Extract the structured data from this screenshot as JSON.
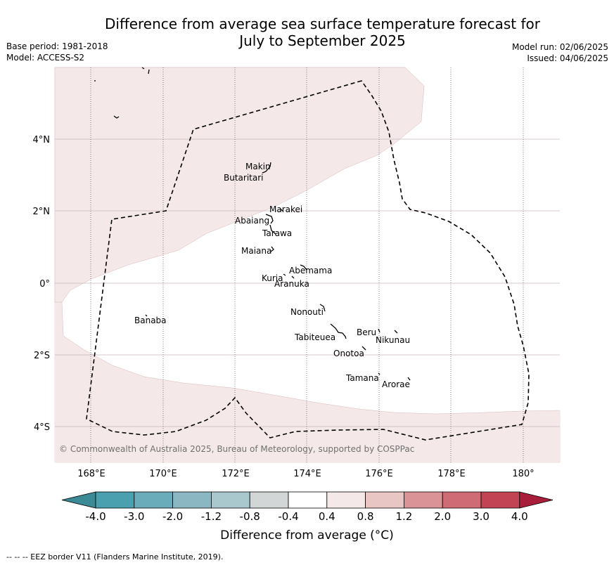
{
  "title_line1": "Difference from average sea surface temperature forecast for",
  "title_line2": "July to September 2025",
  "meta": {
    "base_period": "Base period: 1981-2018",
    "model": "Model: ACCESS-S2",
    "model_run": "Model run: 02/06/2025",
    "issued": "Issued: 04/06/2025"
  },
  "copyright": "© Commonwealth of Australia 2025, Bureau of Meteorology, supported by COSPPac",
  "eez_note": "--  --  -- EEZ border V11 (Flanders Marine Institute, 2019).",
  "map": {
    "x_ticks": [
      "168°E",
      "170°E",
      "172°E",
      "174°E",
      "176°E",
      "178°E",
      "180°"
    ],
    "y_ticks": [
      "4°N",
      "2°N",
      "0°",
      "2°S",
      "4°S"
    ],
    "places": [
      {
        "name": "Makin"
      },
      {
        "name": "Butaritari"
      },
      {
        "name": "Marakei"
      },
      {
        "name": "Abaiang"
      },
      {
        "name": "Tarawa"
      },
      {
        "name": "Maiana"
      },
      {
        "name": "Abemama"
      },
      {
        "name": "Kuria"
      },
      {
        "name": "Aranuka"
      },
      {
        "name": "Banaba"
      },
      {
        "name": "Nonouti"
      },
      {
        "name": "Beru"
      },
      {
        "name": "Tabiteuea"
      },
      {
        "name": "Nikunau"
      },
      {
        "name": "Onotoa"
      },
      {
        "name": "Tamana"
      },
      {
        "name": "Arorae"
      }
    ],
    "colors": {
      "land_fill": "#f5e8e8",
      "eez_line": "#000000",
      "grid": "#c8b8bc"
    }
  },
  "colorbar": {
    "title": "Difference from average (°C)",
    "ticks": [
      "-4.0",
      "-3.0",
      "-2.0",
      "-1.2",
      "-0.8",
      "-0.4",
      "0.4",
      "0.8",
      "1.2",
      "2.0",
      "3.0",
      "4.0"
    ],
    "colors": [
      "#3c8a96",
      "#4aa0af",
      "#6aacb9",
      "#8ab7c1",
      "#a9c8cd",
      "#d2d6d6",
      "#ffffff",
      "#f5e8e8",
      "#e8c6c3",
      "#da9396",
      "#cf6b74",
      "#c24353",
      "#a71d3b"
    ]
  }
}
